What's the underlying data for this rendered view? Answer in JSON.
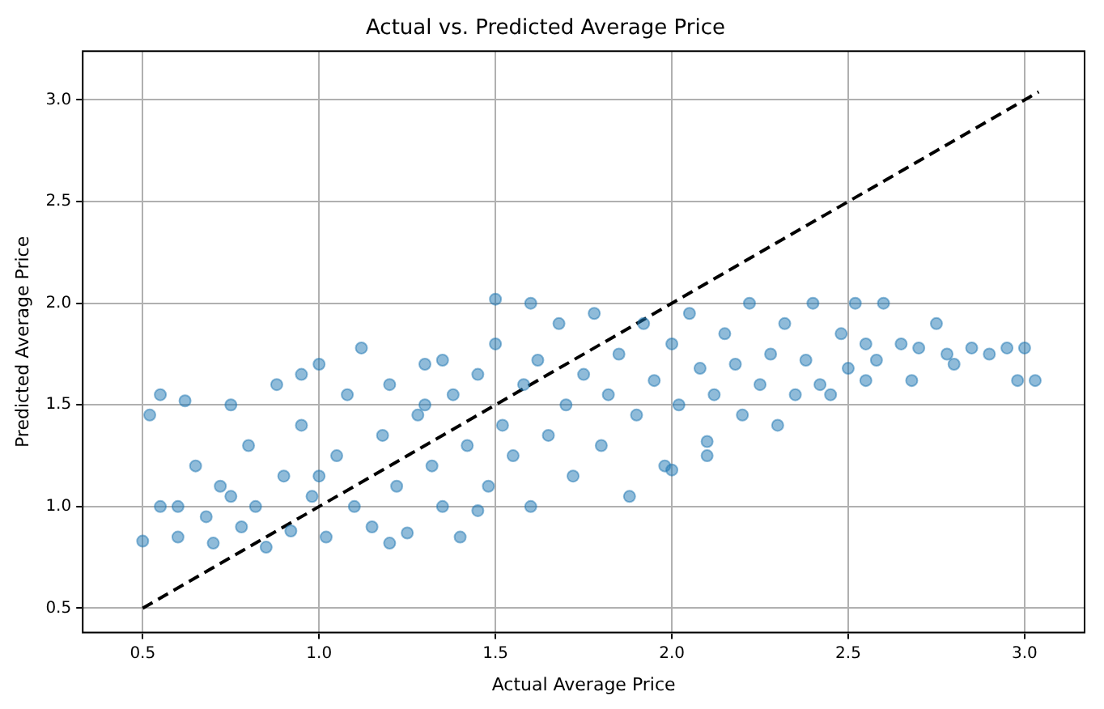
{
  "chart_data": {
    "type": "scatter",
    "title": "Actual vs. Predicted Average Price",
    "xlabel": "Actual Average Price",
    "ylabel": "Predicted Average Price",
    "xlim": [
      0.33,
      3.17
    ],
    "ylim": [
      0.38,
      3.24
    ],
    "xticks": [
      {
        "value": 0.5,
        "label": "0.5"
      },
      {
        "value": 1,
        "label": "1.0"
      },
      {
        "value": 1.5,
        "label": "1.5"
      },
      {
        "value": 2,
        "label": "2.0"
      },
      {
        "value": 2.5,
        "label": "2.5"
      },
      {
        "value": 3,
        "label": "3.0"
      }
    ],
    "yticks": [
      {
        "value": 0.5,
        "label": "0.5"
      },
      {
        "value": 1,
        "label": "1.0"
      },
      {
        "value": 1.5,
        "label": "1.5"
      },
      {
        "value": 2,
        "label": "2.0"
      },
      {
        "value": 2.5,
        "label": "2.5"
      },
      {
        "value": 3,
        "label": "3.0"
      }
    ],
    "grid": true,
    "legend": false,
    "marker": "circle",
    "series": [
      {
        "type": "scatter",
        "color": "#1f77b4",
        "x": [
          0.5,
          0.52,
          0.55,
          0.6,
          0.62,
          0.65,
          0.68,
          0.7,
          0.72,
          0.75,
          0.78,
          0.8,
          0.82,
          0.85,
          0.88,
          0.9,
          0.92,
          0.95,
          0.98,
          1.0,
          1.02,
          1.05,
          1.08,
          1.1,
          1.12,
          1.15,
          1.18,
          1.2,
          1.22,
          1.25,
          1.28,
          1.3,
          1.32,
          1.35,
          1.38,
          1.4,
          1.42,
          1.45,
          1.48,
          1.5,
          1.5,
          1.52,
          1.55,
          1.58,
          1.6,
          1.62,
          1.65,
          1.68,
          1.7,
          1.72,
          1.75,
          1.78,
          1.8,
          1.82,
          1.85,
          1.88,
          1.9,
          1.92,
          1.95,
          1.98,
          2.0,
          2.02,
          2.05,
          2.08,
          2.1,
          2.12,
          2.15,
          2.18,
          2.2,
          2.22,
          2.25,
          2.28,
          2.3,
          2.32,
          2.35,
          2.38,
          2.4,
          2.42,
          2.45,
          2.48,
          2.5,
          2.52,
          2.55,
          2.58,
          2.6,
          2.65,
          2.68,
          2.7,
          2.75,
          2.78,
          2.8,
          2.85,
          2.9,
          2.95,
          2.98,
          3.03,
          3.0,
          2.55,
          1.35,
          0.95,
          0.55,
          1.2,
          0.75,
          1.6,
          1.45,
          2.0,
          2.1,
          0.6,
          1.0,
          1.3
        ],
        "values": [
          0.83,
          1.45,
          1.0,
          0.85,
          1.52,
          1.2,
          0.95,
          0.82,
          1.1,
          1.5,
          0.9,
          1.3,
          1.0,
          0.8,
          1.6,
          1.15,
          0.88,
          1.4,
          1.05,
          1.7,
          0.85,
          1.25,
          1.55,
          1.0,
          1.78,
          0.9,
          1.35,
          1.6,
          1.1,
          0.87,
          1.45,
          1.7,
          1.2,
          1.0,
          1.55,
          0.85,
          1.3,
          1.65,
          1.1,
          1.8,
          2.02,
          1.4,
          1.25,
          1.6,
          1.0,
          1.72,
          1.35,
          1.9,
          1.5,
          1.15,
          1.65,
          1.95,
          1.3,
          1.55,
          1.75,
          1.05,
          1.45,
          1.9,
          1.62,
          1.2,
          1.8,
          1.5,
          1.95,
          1.68,
          1.32,
          1.55,
          1.85,
          1.7,
          1.45,
          2.0,
          1.6,
          1.75,
          1.4,
          1.9,
          1.55,
          1.72,
          2.0,
          1.6,
          1.55,
          1.85,
          1.68,
          2.0,
          1.62,
          1.72,
          2.0,
          1.8,
          1.62,
          1.78,
          1.9,
          1.75,
          1.7,
          1.78,
          1.75,
          1.78,
          1.62,
          1.62,
          1.78,
          1.8,
          1.72,
          1.65,
          1.55,
          0.82,
          1.05,
          2.0,
          0.98,
          1.18,
          1.25,
          1.0,
          1.15,
          1.5
        ]
      },
      {
        "type": "line",
        "color": "#000000",
        "line_style": "dashed",
        "marker": "none",
        "x": [
          0.5,
          3.04
        ],
        "values": [
          0.5,
          3.04
        ]
      }
    ]
  }
}
